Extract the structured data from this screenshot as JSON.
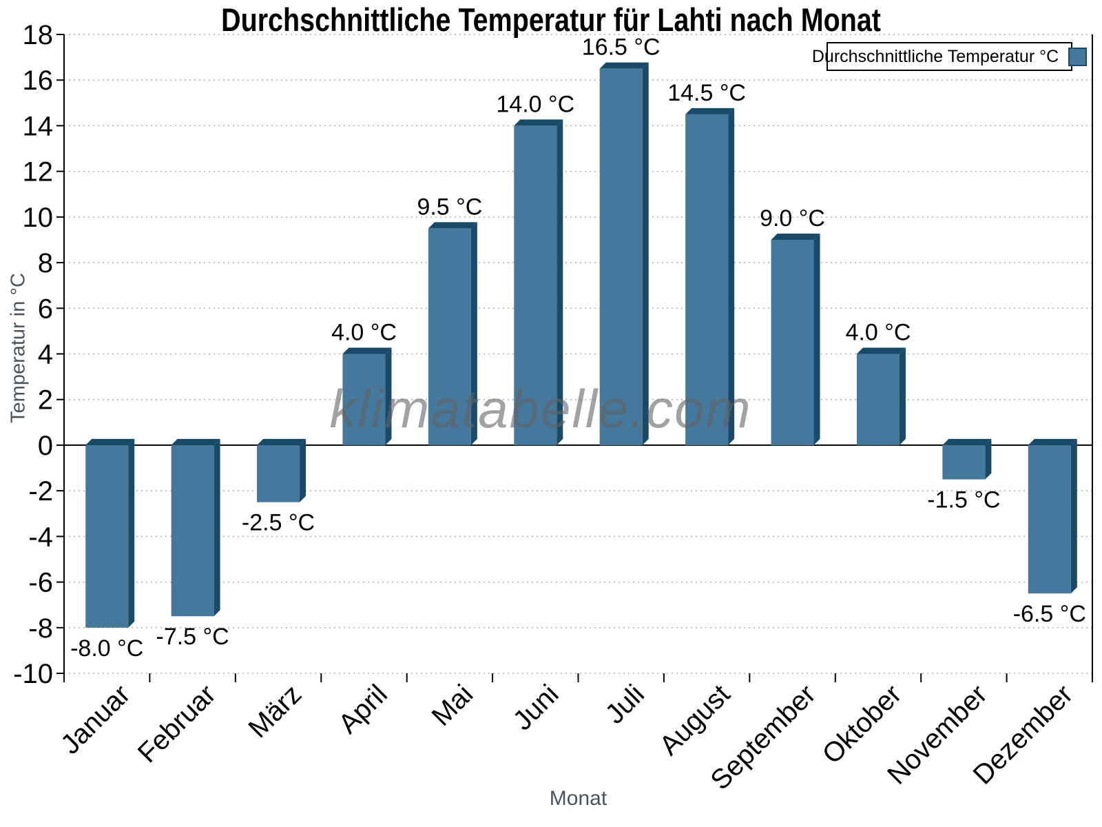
{
  "watermark": "klimatabelle.com",
  "chart_data": {
    "type": "bar",
    "title": "Durchschnittliche Temperatur für Lahti nach Monat",
    "xlabel": "Monat",
    "ylabel": "Temperatur in °C",
    "legend_position": "top-right",
    "grid": "horizontal-dotted",
    "ylim": [
      -10,
      18
    ],
    "ytick_step": 2,
    "categories": [
      "Januar",
      "Februar",
      "März",
      "April",
      "Mai",
      "Juni",
      "Juli",
      "August",
      "September",
      "Oktober",
      "November",
      "Dezember"
    ],
    "series": [
      {
        "name": "Durchschnittliche Temperatur °C",
        "values": [
          -8.0,
          -7.5,
          -2.5,
          4.0,
          9.5,
          14.0,
          16.5,
          14.5,
          9.0,
          4.0,
          -1.5,
          -6.5
        ],
        "value_labels": [
          "-8.0 °C",
          "-7.5 °C",
          "-2.5 °C",
          "4.0 °C",
          "9.5 °C",
          "14.0 °C",
          "16.5 °C",
          "14.5 °C",
          "9.0 °C",
          "4.0 °C",
          "-1.5 °C",
          "-6.5 °C"
        ]
      }
    ],
    "colors": {
      "bar_front": "#44789D",
      "bar_depth": "#1A4A68",
      "axis_line": "#000000",
      "gridline": "#AFAFAF",
      "tick_label": "#000000",
      "axis_title": "#4A545E",
      "watermark": "#9A9A9A"
    }
  }
}
